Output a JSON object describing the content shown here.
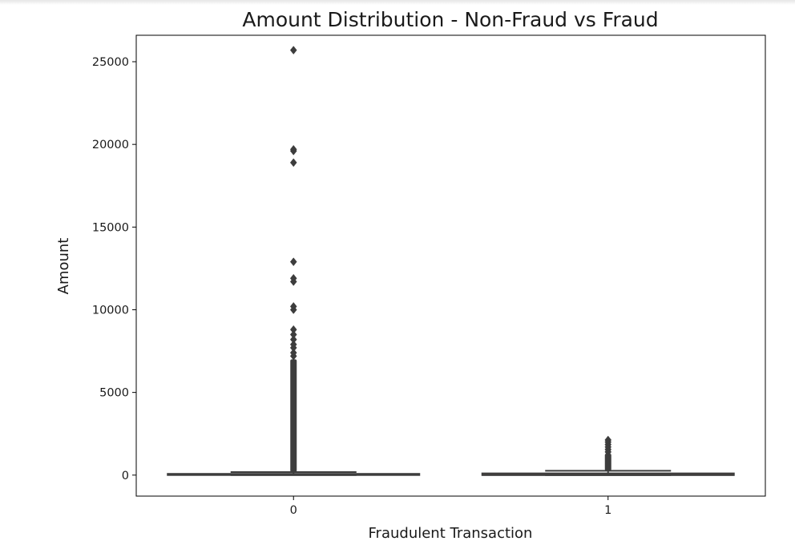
{
  "chart_data": {
    "type": "box",
    "title": "Amount Distribution - Non-Fraud vs Fraud",
    "xlabel": "Fraudulent Transaction",
    "ylabel": "Amount",
    "categories": [
      "0",
      "1"
    ],
    "ylim": [
      -1270,
      26600
    ],
    "yticks": [
      0,
      5000,
      10000,
      15000,
      20000,
      25000
    ],
    "grid": false,
    "boxes": [
      {
        "category": "0",
        "min": 0,
        "q1": 5,
        "median": 22,
        "q3": 77,
        "max": 185,
        "outlier_range": [
          185,
          7000
        ],
        "outliers": [
          7200,
          7400,
          7700,
          7900,
          8200,
          8500,
          8800,
          10000,
          10200,
          11700,
          11900,
          12900,
          18900,
          19600,
          19700,
          25700
        ]
      },
      {
        "category": "1",
        "min": 0,
        "q1": 1,
        "median": 9,
        "q3": 105,
        "max": 260,
        "outlier_range": [
          260,
          1300
        ],
        "outliers": [
          1400,
          1550,
          1700,
          1850,
          2000,
          2125
        ]
      }
    ],
    "colors": {
      "box0": "#3f75a2",
      "box1": "#e1812c",
      "lines": "#3d3d3d"
    }
  }
}
